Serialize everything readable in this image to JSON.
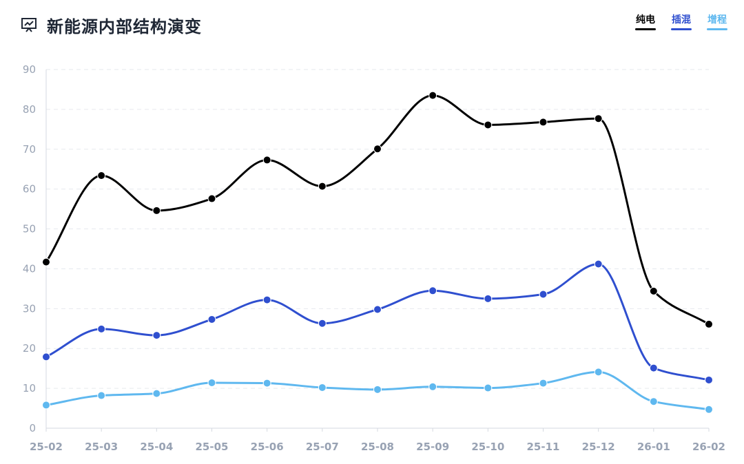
{
  "header": {
    "title": "新能源内部结构演变",
    "icon": "presentation-chart-icon"
  },
  "chart_data": {
    "type": "line",
    "title": "新能源内部结构演变",
    "xlabel": "",
    "ylabel": "",
    "categories": [
      "25-02",
      "25-03",
      "25-04",
      "25-05",
      "25-06",
      "25-07",
      "25-08",
      "25-09",
      "25-10",
      "25-11",
      "25-12",
      "26-01",
      "26-02"
    ],
    "y_ticks": [
      "0",
      "10",
      "20",
      "30",
      "40",
      "50",
      "60",
      "70",
      "80",
      "90"
    ],
    "ylim": [
      0,
      90
    ],
    "grid": true,
    "legend_position": "top-right",
    "series": [
      {
        "name": "纯电",
        "color": "#000000",
        "values": [
          41.7,
          63.4,
          54.6,
          57.6,
          67.3,
          60.7,
          70.1,
          83.5,
          76.1,
          76.8,
          77.7,
          34.4,
          26.1
        ]
      },
      {
        "name": "插混",
        "color": "#2f4fcf",
        "values": [
          17.9,
          24.9,
          23.3,
          27.3,
          32.2,
          26.3,
          29.8,
          34.5,
          32.5,
          33.6,
          41.2,
          15.1,
          12.1
        ]
      },
      {
        "name": "增程",
        "color": "#5fb8ef",
        "values": [
          5.8,
          8.2,
          8.7,
          11.4,
          11.3,
          10.2,
          9.7,
          10.4,
          10.1,
          11.3,
          14.1,
          6.7,
          4.7
        ]
      }
    ]
  }
}
